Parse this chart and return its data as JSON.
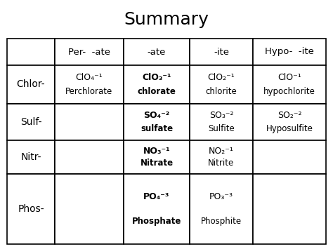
{
  "title": "Summary",
  "title_fontsize": 18,
  "background_color": "#ffffff",
  "col_headers": [
    "Per-  -ate",
    "-ate",
    "-ite",
    "Hypo-  -ite"
  ],
  "row_headers": [
    "Chlor-",
    "Sulf-",
    "Nitr-",
    "Phos-"
  ],
  "cells": [
    [
      {
        "line1": "ClO₄⁻¹",
        "line2": "Perchlorate",
        "bold": false
      },
      {
        "line1": "ClO₃⁻¹",
        "line2": "chlorate",
        "bold": true
      },
      {
        "line1": "ClO₂⁻¹",
        "line2": "chlorite",
        "bold": false
      },
      {
        "line1": "ClO⁻¹",
        "line2": "hypochlorite",
        "bold": false
      }
    ],
    [
      {
        "line1": "",
        "line2": "",
        "bold": false
      },
      {
        "line1": "SO₄⁻²",
        "line2": "sulfate",
        "bold": true
      },
      {
        "line1": "SO₃⁻²",
        "line2": "Sulfite",
        "bold": false
      },
      {
        "line1": "SO₂⁻²",
        "line2": "Hyposulfite",
        "bold": false
      }
    ],
    [
      {
        "line1": "",
        "line2": "",
        "bold": false
      },
      {
        "line1": "NO₃⁻¹",
        "line2": "Nitrate",
        "bold": true
      },
      {
        "line1": "NO₂⁻¹",
        "line2": "Nitrite",
        "bold": false
      },
      {
        "line1": "",
        "line2": "",
        "bold": false
      }
    ],
    [
      {
        "line1": "",
        "line2": "",
        "bold": false
      },
      {
        "line1": "PO₄⁻³",
        "line2": "Phosphate",
        "bold": true
      },
      {
        "line1": "PO₃⁻³",
        "line2": "Phosphite",
        "bold": false
      },
      {
        "line1": "",
        "line2": "",
        "bold": false
      }
    ]
  ],
  "col_header_fontsize": 9.5,
  "row_header_fontsize": 10,
  "cell_formula_fontsize": 9,
  "cell_name_fontsize": 8.5,
  "text_color": "#000000",
  "grid_color": "#000000"
}
